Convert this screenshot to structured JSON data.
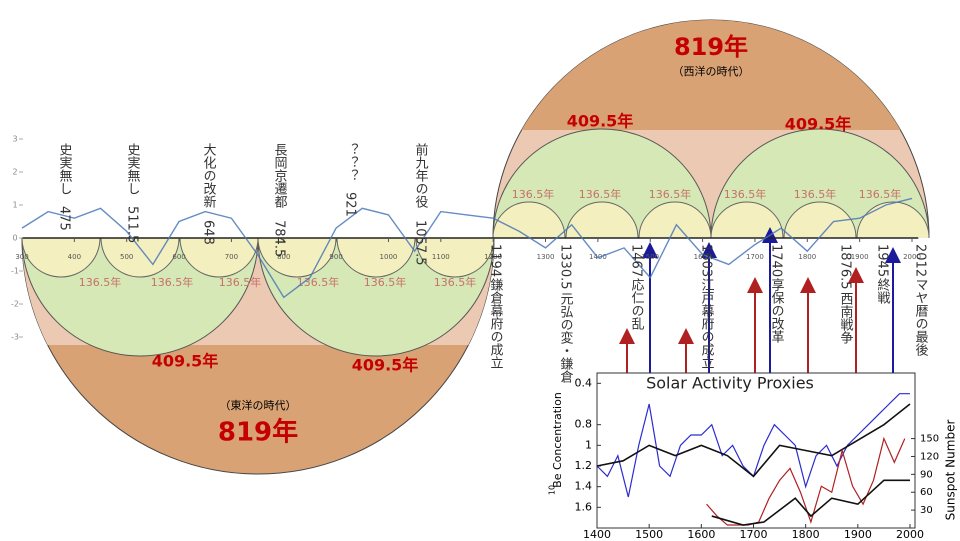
{
  "timeline": {
    "x": [
      300,
      350,
      400,
      450,
      500,
      550,
      600,
      650,
      700,
      750,
      800,
      850,
      900,
      950,
      1000,
      1050,
      1100,
      1150,
      1200,
      1250,
      1300,
      1350,
      1400,
      1450,
      1500,
      1550,
      1600,
      1650,
      1700,
      1750,
      1800,
      1850,
      1900,
      1950,
      2000
    ],
    "values": [
      0.3,
      0.8,
      0.6,
      0.9,
      0.2,
      -0.8,
      0.5,
      0.8,
      0.6,
      -0.5,
      -1.8,
      -1.2,
      0.3,
      0.9,
      0.7,
      -0.4,
      0.8,
      0.7,
      0.6,
      0.2,
      -0.3,
      0.4,
      -0.6,
      -0.3,
      -1.2,
      0.4,
      -0.5,
      -0.8,
      -0.2,
      0.3,
      -0.4,
      0.5,
      0.6,
      1.0,
      1.2
    ],
    "color": "#4a78b8",
    "xlim": [
      300,
      2012
    ],
    "ylim": [
      -3,
      3
    ],
    "xticks": [
      300,
      400,
      500,
      600,
      700,
      800,
      900,
      1000,
      1100,
      1200,
      1300,
      1400,
      1500,
      1600,
      1700,
      1800,
      1900,
      2000
    ],
    "yticks": [
      3,
      2,
      1,
      0,
      -1,
      -2,
      -3
    ]
  },
  "arcs": {
    "east": {
      "period": "819年",
      "label": "（東洋の時代）",
      "halves": [
        "409.5年",
        "409.5年"
      ],
      "thirds": [
        "136.5年",
        "136.5年",
        "136.5年",
        "136.5年",
        "136.5年",
        "136.5年"
      ]
    },
    "west": {
      "period": "819年",
      "label": "（西洋の時代）",
      "halves": [
        "409.5年",
        "409.5年"
      ],
      "thirds": [
        "136.5年",
        "136.5年",
        "136.5年",
        "136.5年",
        "136.5年",
        "136.5年"
      ]
    }
  },
  "events": [
    {
      "label": "史実無し",
      "year": "475"
    },
    {
      "label": "史実無し",
      "year": "511.5"
    },
    {
      "label": "大化の改新",
      "year": "648"
    },
    {
      "label": "長岡京遷都",
      "year": "784.5"
    },
    {
      "label": "？？？",
      "year": "921"
    },
    {
      "label": "前九年の役",
      "year": "1057.5"
    },
    {
      "label": "鎌倉幕府の成立",
      "year": "1194"
    },
    {
      "label": "元弘の変・鎌倉",
      "year": "1330.5"
    },
    {
      "label": "応仁の乱",
      "year": "1467"
    },
    {
      "label": "江戸幕府の成立",
      "year": "1603"
    },
    {
      "label": "享保の改革",
      "year": "1740"
    },
    {
      "label": "西南戦争",
      "year": "1876.5"
    },
    {
      "label": "終戦",
      "year": "1945"
    },
    {
      "label": "マヤ暦の最後",
      "year": "2012"
    }
  ],
  "inset": {
    "title": "Solar Activity Proxies",
    "ylabel_sup": "10",
    "ylabel": "Be Concentration",
    "y2label": "Sunspot Number",
    "xlim": [
      1400,
      2000
    ],
    "xticks": [
      1400,
      1500,
      1600,
      1700,
      1800,
      1900,
      2000
    ],
    "ylim": [
      1.8,
      0.3
    ],
    "yticks": [
      0.4,
      0.8,
      1,
      1.2,
      1.4,
      1.6
    ],
    "y2lim": [
      0,
      260
    ],
    "y2ticks": [
      30,
      60,
      90,
      120,
      150
    ],
    "series": [
      {
        "color": "#2b2bd0",
        "x": [
          1400,
          1420,
          1440,
          1460,
          1480,
          1500,
          1520,
          1540,
          1560,
          1580,
          1600,
          1620,
          1640,
          1660,
          1680,
          1700,
          1720,
          1740,
          1760,
          1780,
          1800,
          1820,
          1840,
          1860,
          1880,
          1900,
          1920,
          1940,
          1960,
          1980,
          2000
        ],
        "values": [
          1.2,
          1.3,
          1.1,
          1.5,
          1.0,
          0.6,
          1.2,
          1.3,
          1.0,
          0.9,
          0.9,
          0.8,
          1.1,
          1.0,
          1.2,
          1.3,
          1.0,
          0.8,
          0.9,
          1.0,
          1.4,
          1.1,
          1.0,
          1.2,
          1.0,
          0.9,
          0.8,
          0.7,
          0.6,
          0.5,
          0.5
        ]
      },
      {
        "color": "#111111",
        "x": [
          1400,
          1450,
          1500,
          1550,
          1600,
          1650,
          1700,
          1750,
          1800,
          1850,
          1900,
          1950,
          2000
        ],
        "values": [
          1.2,
          1.15,
          1.0,
          1.1,
          1.0,
          1.1,
          1.3,
          1.0,
          1.05,
          1.1,
          0.95,
          0.8,
          0.6
        ]
      },
      {
        "color": "#b02020",
        "axis": "y2",
        "x": [
          1610,
          1630,
          1650,
          1670,
          1690,
          1710,
          1730,
          1750,
          1770,
          1790,
          1810,
          1830,
          1850,
          1870,
          1890,
          1910,
          1930,
          1950,
          1970,
          1990
        ],
        "values": [
          40,
          20,
          5,
          5,
          5,
          10,
          50,
          80,
          100,
          60,
          10,
          70,
          60,
          130,
          70,
          40,
          80,
          150,
          110,
          150
        ]
      },
      {
        "color": "#111111",
        "axis": "y2",
        "x": [
          1620,
          1680,
          1720,
          1780,
          1810,
          1850,
          1900,
          1950,
          2000
        ],
        "values": [
          20,
          5,
          10,
          50,
          20,
          50,
          40,
          80,
          80
        ]
      }
    ]
  }
}
